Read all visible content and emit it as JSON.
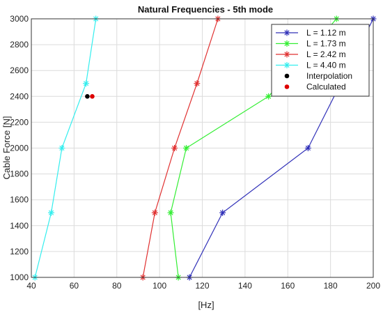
{
  "chart_data": {
    "type": "line",
    "title": "Natural Frequencies - 5th mode",
    "xlabel": "[Hz]",
    "ylabel": "Cable Force [N]",
    "xlim": [
      40,
      200
    ],
    "ylim": [
      1000,
      3000
    ],
    "xticks": [
      40,
      60,
      80,
      100,
      120,
      140,
      160,
      180,
      200
    ],
    "yticks": [
      1000,
      1200,
      1400,
      1600,
      1800,
      2000,
      2200,
      2400,
      2600,
      2800,
      3000
    ],
    "grid": true,
    "legend_position": "top-right",
    "series": [
      {
        "name": "L = 1.12 m",
        "color": "#3030b8",
        "marker": "asterisk",
        "points": [
          [
            114,
            1000
          ],
          [
            129.5,
            1500
          ],
          [
            169.5,
            2000
          ],
          [
            200,
            3000
          ]
        ]
      },
      {
        "name": "L = 1.73 m",
        "color": "#33ee33",
        "marker": "asterisk",
        "points": [
          [
            108.8,
            1000
          ],
          [
            105.2,
            1500
          ],
          [
            112.5,
            2000
          ],
          [
            151,
            2400
          ],
          [
            182.8,
            3000
          ]
        ]
      },
      {
        "name": "L = 2.42 m",
        "color": "#e03030",
        "marker": "asterisk",
        "points": [
          [
            92.2,
            1000
          ],
          [
            97.8,
            1500
          ],
          [
            107,
            2000
          ],
          [
            117.5,
            2500
          ],
          [
            127.3,
            3000
          ]
        ]
      },
      {
        "name": "L = 4.40 m",
        "color": "#33eeee",
        "marker": "asterisk",
        "points": [
          [
            41.7,
            1000
          ],
          [
            49.3,
            1500
          ],
          [
            54.3,
            2000
          ],
          [
            65.6,
            2500
          ],
          [
            70.2,
            3000
          ]
        ]
      }
    ],
    "points": [
      {
        "name": "Interpolation",
        "color": "#000000",
        "x": 66.2,
        "y": 2400
      },
      {
        "name": "Calculated",
        "color": "#dd0000",
        "x": 68.5,
        "y": 2400
      }
    ]
  }
}
